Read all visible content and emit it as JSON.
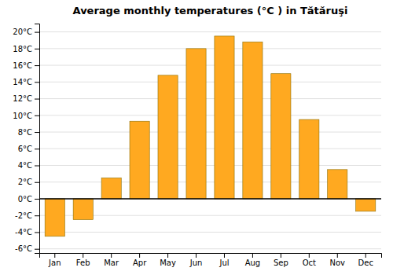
{
  "chart_data": {
    "type": "bar",
    "title": "Average monthly temperatures (°C ) in Tătăruşi",
    "categories": [
      "Jan",
      "Feb",
      "Mar",
      "Apr",
      "May",
      "Jun",
      "Jul",
      "Aug",
      "Sep",
      "Oct",
      "Nov",
      "Dec"
    ],
    "values": [
      -4.5,
      -2.5,
      2.5,
      9.3,
      14.8,
      18.0,
      19.5,
      18.8,
      15.0,
      9.5,
      3.5,
      -1.5
    ],
    "color": "#FFA920",
    "ylim": [
      -6.5,
      21
    ],
    "yticks": [
      {
        "value": -6,
        "label": "-6°C"
      },
      {
        "value": -4,
        "label": "-4°C"
      },
      {
        "value": -2,
        "label": "-2°C"
      },
      {
        "value": 0,
        "label": "0°C"
      },
      {
        "value": 2,
        "label": "2°C"
      },
      {
        "value": 4,
        "label": "4°C"
      },
      {
        "value": 6,
        "label": "6°C"
      },
      {
        "value": 8,
        "label": "8°C"
      },
      {
        "value": 10,
        "label": "10°C"
      },
      {
        "value": 12,
        "label": "12°C"
      },
      {
        "value": 14,
        "label": "14°C"
      },
      {
        "value": 16,
        "label": "16°C"
      },
      {
        "value": 18,
        "label": "18°C"
      },
      {
        "value": 20,
        "label": "20°C"
      }
    ],
    "grid": true
  }
}
